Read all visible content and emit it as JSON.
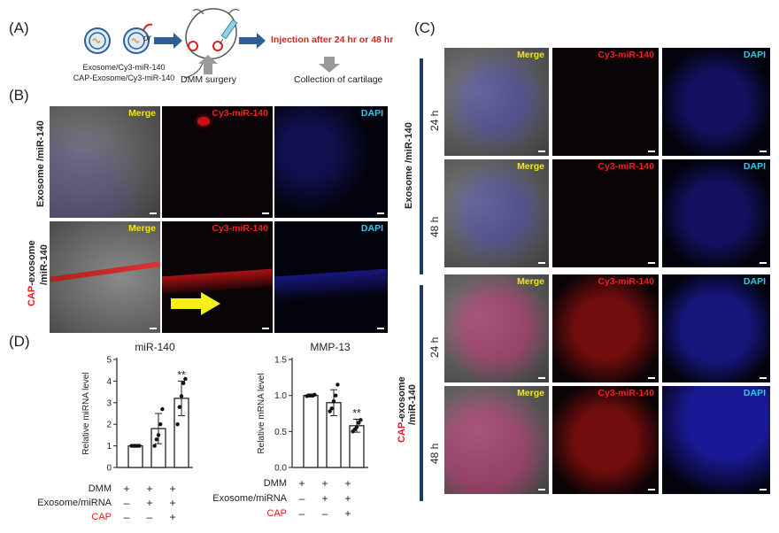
{
  "panels": {
    "a": "(A)",
    "b": "(B)",
    "c": "(C)",
    "d": "(D)"
  },
  "panel_a": {
    "or_text": "or",
    "exo_label_1": "Exosome/Cy3-miR-140",
    "exo_label_2": "CAP-Exosome/Cy3-miR-140",
    "dmm_surgery": "DMM surgery",
    "injection_text": "Injection after 24 hr or 48 hr",
    "collection_text": "Collection of cartilage",
    "accent_red": "#e11d1d",
    "arrow_blue": "#2f5e93",
    "arrow_gray": "#9a9a9a"
  },
  "image_labels": {
    "merge": "Merge",
    "cy3": "Cy3-miR-140",
    "dapi": "DAPI"
  },
  "panel_b": {
    "row1_label": "Exosome /miR-140",
    "row2_cap": "CAP",
    "row2_label_rest": "-exosome",
    "row2_label_2": "/miR-140"
  },
  "panel_c": {
    "group1_label": "Exosome /miR-140",
    "group2_cap": "CAP",
    "group2_rest": "-exosome",
    "group2_label_2": "/miR-140",
    "t24": "24 h",
    "t48": "48 h"
  },
  "panel_d": {
    "rows": {
      "dmm": "DMM",
      "exo": "Exosome/miRNA",
      "cap": "CAP"
    },
    "signs": {
      "dmm": [
        "+",
        "+",
        "+"
      ],
      "exo": [
        "–",
        "+",
        "+"
      ],
      "cap": [
        "–",
        "–",
        "+"
      ]
    }
  },
  "chart_data": [
    {
      "type": "bar",
      "title": "miR-140",
      "ylabel": "Relative miRNA level",
      "ylim": [
        0,
        5
      ],
      "yticks": [
        "0",
        "1",
        "2",
        "3",
        "4",
        "5"
      ],
      "categories": [
        "DMM",
        "DMM+Exosome/miRNA",
        "DMM+Exosome/miRNA+CAP"
      ],
      "values": [
        1.0,
        1.8,
        3.2
      ],
      "errors": [
        0.02,
        0.7,
        0.8
      ],
      "points": [
        [
          1.0,
          1.0,
          1.0,
          1.0,
          1.0
        ],
        [
          1.0,
          1.3,
          1.5,
          2.0,
          2.7
        ],
        [
          2.0,
          2.8,
          3.3,
          3.9,
          4.1
        ]
      ],
      "significance": [
        "",
        "",
        "**"
      ]
    },
    {
      "type": "bar",
      "title": "MMP-13",
      "ylabel": "Relative mRNA level",
      "ylim": [
        0,
        1.5
      ],
      "yticks": [
        "0.0",
        "0.5",
        "1.0",
        "1.5"
      ],
      "categories": [
        "DMM",
        "DMM+Exosome/miRNA",
        "DMM+Exosome/miRNA+CAP"
      ],
      "values": [
        1.0,
        0.9,
        0.58
      ],
      "errors": [
        0.02,
        0.18,
        0.09
      ],
      "points": [
        [
          0.99,
          1.0,
          1.0,
          1.0,
          1.01
        ],
        [
          0.78,
          0.82,
          0.92,
          1.0,
          1.15
        ],
        [
          0.5,
          0.53,
          0.56,
          0.62,
          0.66
        ]
      ],
      "significance": [
        "",
        "",
        "**"
      ]
    }
  ]
}
